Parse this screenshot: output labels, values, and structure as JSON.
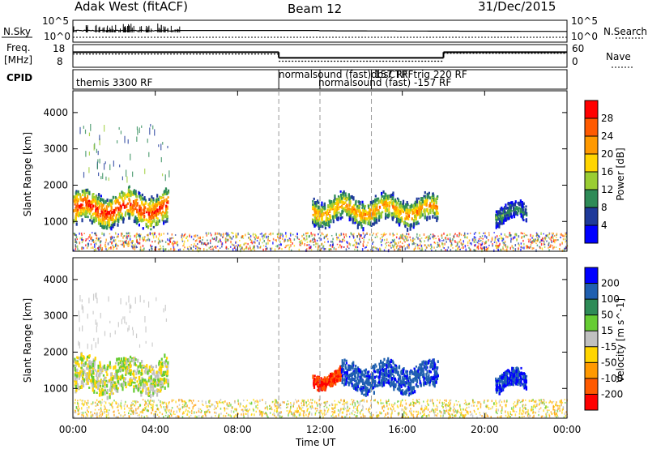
{
  "header": {
    "station": "Adak West (fitACF)",
    "beam": "Beam 12",
    "date": "31/Dec/2015"
  },
  "panels": {
    "nsky": {
      "label": "N.Sky",
      "ticks": [
        "10^5",
        "10^0"
      ],
      "right_label": "N.Search",
      "right_ticks": [
        "10^5",
        "10^0"
      ]
    },
    "freq": {
      "label_line1": "Freq.",
      "label_line2": "[MHz]",
      "ticks": [
        "18",
        "8"
      ],
      "right_label": "Nave",
      "right_ticks": [
        "60",
        "0"
      ]
    },
    "cpid": {
      "label": "CPID",
      "segments": [
        "themis 3300 RF",
        "normalsound (fast) 157 RF",
        "normalsound (fast) -157 RF",
        "dbsCTRFtrig 220 RF"
      ]
    }
  },
  "power_plot": {
    "ylabel": "Slant Range [km]",
    "yticks": [
      "4000",
      "3000",
      "2000",
      "1000"
    ],
    "colorbar_label": "Power [dB]",
    "colorbar_ticks": [
      "28",
      "24",
      "20",
      "16",
      "12",
      "8",
      "4"
    ],
    "colorbar_colors": [
      "#ff0000",
      "#ff5a00",
      "#ff9900",
      "#ffd500",
      "#9acd32",
      "#2e8b57",
      "#1e3a9a",
      "#0000ff"
    ]
  },
  "velocity_plot": {
    "ylabel": "Slant Range [km]",
    "yticks": [
      "4000",
      "3000",
      "2000",
      "1000"
    ],
    "colorbar_label": "Velocity [m s^-1]",
    "colorbar_ticks": [
      "200",
      "100",
      "50",
      "15",
      "-15",
      "-50",
      "-100",
      "-200"
    ],
    "colorbar_colors": [
      "#0000ff",
      "#2060b0",
      "#2e8b57",
      "#66cc33",
      "#c0c0c0",
      "#ffd500",
      "#ff9900",
      "#ff5a00",
      "#ff0000"
    ]
  },
  "xaxis": {
    "ticks": [
      "00:00",
      "04:00",
      "08:00",
      "12:00",
      "16:00",
      "20:00",
      "00:00"
    ],
    "label": "Time UT"
  },
  "chart_data": {
    "type": "heatmap",
    "title": "Adak West (fitACF) Beam 12 31/Dec/2015",
    "xlabel": "Time UT",
    "ylabel": "Slant Range [km]",
    "xlim": [
      0,
      24
    ],
    "ylim": [
      180,
      4600
    ],
    "time_ticks_hours": [
      0,
      4,
      8,
      12,
      16,
      20,
      24
    ],
    "range_ticks_km": [
      1000,
      2000,
      3000,
      4000
    ],
    "nave_line": [
      {
        "start": 0,
        "end": 10,
        "value": 35
      },
      {
        "start": 10,
        "end": 18,
        "value": 16
      },
      {
        "start": 18,
        "end": 24,
        "value": 37
      }
    ],
    "freq_line": [
      {
        "start": 0,
        "end": 10,
        "value": 14
      },
      {
        "start": 10,
        "end": 18,
        "value": 11
      },
      {
        "start": 18,
        "end": 24,
        "value": 14
      }
    ],
    "cpid_boundaries_hours": [
      10,
      12,
      14.5
    ],
    "power_regions": [
      {
        "t_start": 0.0,
        "t_end": 4.6,
        "r_start": 900,
        "r_end": 1900,
        "peak_db": 28
      },
      {
        "t_start": 11.6,
        "t_end": 17.7,
        "r_start": 950,
        "r_end": 1750,
        "peak_db": 22
      },
      {
        "t_start": 20.5,
        "t_end": 22.0,
        "r_start": 1000,
        "r_end": 1500,
        "peak_db": 10
      }
    ],
    "velocity_regions": [
      {
        "t_start": 0.0,
        "t_end": 4.6,
        "r_start": 900,
        "r_end": 1900,
        "velocity": 0
      },
      {
        "t_start": 11.6,
        "t_end": 13.0,
        "r_start": 1100,
        "r_end": 1500,
        "velocity": -200
      },
      {
        "t_start": 13.0,
        "t_end": 17.7,
        "r_start": 950,
        "r_end": 1750,
        "velocity": 180
      },
      {
        "t_start": 20.5,
        "t_end": 22.0,
        "r_start": 1000,
        "r_end": 1500,
        "velocity": 200
      }
    ]
  }
}
